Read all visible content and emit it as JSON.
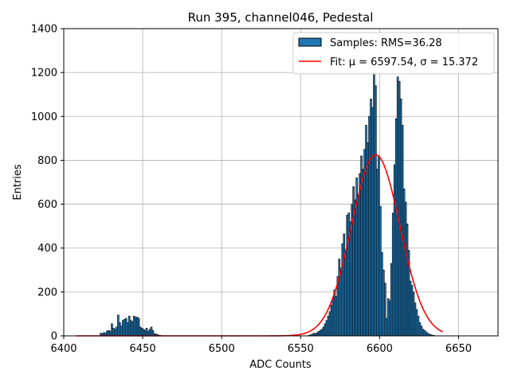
{
  "chart_data": {
    "type": "bar",
    "title": "Run 395, channel046, Pedestal",
    "xlabel": "ADC Counts",
    "ylabel": "Entries",
    "xlim": [
      6400,
      6675
    ],
    "ylim": [
      0,
      1400
    ],
    "xticks": [
      6400,
      6450,
      6500,
      6550,
      6600,
      6650
    ],
    "yticks": [
      0,
      200,
      400,
      600,
      800,
      1000,
      1200,
      1400
    ],
    "grid": true,
    "legend_position": "top-right",
    "colors": {
      "bar_fill": "#1f77b4",
      "bar_edge": "#000000",
      "fit_line": "#ff0000"
    },
    "series": [
      {
        "name": "Samples: RMS=36.28",
        "kind": "histogram",
        "bin_width": 1,
        "bins": [
          [
            6423,
            12
          ],
          [
            6424,
            10
          ],
          [
            6425,
            15
          ],
          [
            6426,
            12
          ],
          [
            6427,
            22
          ],
          [
            6428,
            25
          ],
          [
            6429,
            20
          ],
          [
            6430,
            55
          ],
          [
            6431,
            35
          ],
          [
            6432,
            30
          ],
          [
            6433,
            40
          ],
          [
            6434,
            95
          ],
          [
            6435,
            60
          ],
          [
            6436,
            45
          ],
          [
            6437,
            70
          ],
          [
            6438,
            75
          ],
          [
            6439,
            80
          ],
          [
            6440,
            60
          ],
          [
            6441,
            90
          ],
          [
            6442,
            70
          ],
          [
            6443,
            65
          ],
          [
            6444,
            90
          ],
          [
            6445,
            85
          ],
          [
            6446,
            85
          ],
          [
            6447,
            80
          ],
          [
            6448,
            40
          ],
          [
            6449,
            35
          ],
          [
            6450,
            30
          ],
          [
            6451,
            25
          ],
          [
            6452,
            35
          ],
          [
            6453,
            20
          ],
          [
            6454,
            30
          ],
          [
            6455,
            40
          ],
          [
            6456,
            25
          ],
          [
            6457,
            10
          ],
          [
            6458,
            8
          ],
          [
            6459,
            5
          ],
          [
            6460,
            3
          ],
          [
            6461,
            2
          ],
          [
            6555,
            3
          ],
          [
            6556,
            5
          ],
          [
            6557,
            8
          ],
          [
            6558,
            12
          ],
          [
            6559,
            10
          ],
          [
            6560,
            15
          ],
          [
            6561,
            20
          ],
          [
            6562,
            25
          ],
          [
            6563,
            30
          ],
          [
            6564,
            40
          ],
          [
            6565,
            55
          ],
          [
            6566,
            70
          ],
          [
            6567,
            90
          ],
          [
            6568,
            110
          ],
          [
            6569,
            140
          ],
          [
            6570,
            170
          ],
          [
            6571,
            210
          ],
          [
            6572,
            180
          ],
          [
            6573,
            270
          ],
          [
            6574,
            350
          ],
          [
            6575,
            310
          ],
          [
            6576,
            420
          ],
          [
            6577,
            465
          ],
          [
            6578,
            390
          ],
          [
            6579,
            550
          ],
          [
            6580,
            560
          ],
          [
            6581,
            520
          ],
          [
            6582,
            600
          ],
          [
            6583,
            680
          ],
          [
            6584,
            620
          ],
          [
            6585,
            720
          ],
          [
            6586,
            640
          ],
          [
            6587,
            740
          ],
          [
            6588,
            820
          ],
          [
            6589,
            760
          ],
          [
            6590,
            850
          ],
          [
            6591,
            960
          ],
          [
            6592,
            880
          ],
          [
            6593,
            1000
          ],
          [
            6594,
            1080
          ],
          [
            6595,
            1040
          ],
          [
            6596,
            1200
          ],
          [
            6597,
            1140
          ],
          [
            6598,
            760
          ],
          [
            6599,
            820
          ],
          [
            6600,
            590
          ],
          [
            6601,
            380
          ],
          [
            6602,
            300
          ],
          [
            6603,
            240
          ],
          [
            6604,
            80
          ],
          [
            6605,
            170
          ],
          [
            6606,
            160
          ],
          [
            6607,
            330
          ],
          [
            6608,
            560
          ],
          [
            6609,
            780
          ],
          [
            6610,
            990
          ],
          [
            6611,
            1180
          ],
          [
            6612,
            1160
          ],
          [
            6613,
            1080
          ],
          [
            6614,
            960
          ],
          [
            6615,
            670
          ],
          [
            6616,
            610
          ],
          [
            6617,
            510
          ],
          [
            6618,
            390
          ],
          [
            6619,
            250
          ],
          [
            6620,
            230
          ],
          [
            6621,
            200
          ],
          [
            6622,
            150
          ],
          [
            6623,
            120
          ],
          [
            6624,
            90
          ],
          [
            6625,
            60
          ],
          [
            6626,
            45
          ],
          [
            6627,
            30
          ],
          [
            6628,
            25
          ],
          [
            6629,
            18
          ],
          [
            6630,
            12
          ],
          [
            6631,
            8
          ],
          [
            6632,
            5
          ],
          [
            6633,
            3
          ],
          [
            6634,
            2
          ]
        ]
      },
      {
        "name": "Fit: μ = 6597.54, σ = 15.372",
        "kind": "gaussian",
        "mu": 6597.54,
        "sigma": 15.372,
        "amplitude": 825,
        "x_range": [
          6408,
          6640
        ]
      }
    ]
  }
}
